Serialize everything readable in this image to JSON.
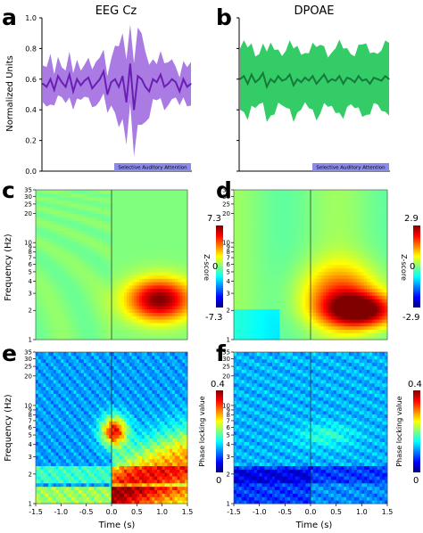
{
  "chart_data": [
    {
      "panel": "a",
      "type": "line",
      "title": "EEG Cz",
      "ylabel": "Normalized Units",
      "ylim": [
        0,
        1.0
      ],
      "yticks": [
        "0.0",
        "0.2",
        "0.4",
        "0.6",
        "0.8",
        "1.0"
      ],
      "time_range_s": [
        -1.5,
        1.5
      ],
      "banner": "Selective Auditory Attention",
      "colors": {
        "line": "#6a1fb3",
        "band": "#a97be3"
      },
      "series": [
        {
          "values": [
            0.57,
            0.55,
            0.6,
            0.53,
            0.62,
            0.58,
            0.55,
            0.63,
            0.52,
            0.6,
            0.56,
            0.59,
            0.61,
            0.54,
            0.57,
            0.6,
            0.65,
            0.5,
            0.58,
            0.6,
            0.55,
            0.62,
            0.45,
            0.7,
            0.4,
            0.62,
            0.6,
            0.55,
            0.52,
            0.6,
            0.58,
            0.63,
            0.55,
            0.57,
            0.6,
            0.58,
            0.52,
            0.6,
            0.55,
            0.57
          ]
        }
      ],
      "band_halfwidth": [
        0.12,
        0.11,
        0.14,
        0.1,
        0.15,
        0.12,
        0.11,
        0.13,
        0.1,
        0.12,
        0.11,
        0.13,
        0.14,
        0.11,
        0.12,
        0.13,
        0.16,
        0.15,
        0.17,
        0.2,
        0.22,
        0.25,
        0.3,
        0.32,
        0.35,
        0.3,
        0.25,
        0.2,
        0.18,
        0.16,
        0.14,
        0.15,
        0.13,
        0.12,
        0.13,
        0.12,
        0.11,
        0.12,
        0.11,
        0.12
      ]
    },
    {
      "panel": "b",
      "type": "line",
      "title": "DPOAE",
      "ylim": [
        0,
        1.0
      ],
      "time_range_s": [
        -1.5,
        1.5
      ],
      "banner": "Selective Auditory Attention",
      "colors": {
        "line": "#157a3b",
        "band": "#33cc66"
      },
      "series": [
        {
          "values": [
            0.6,
            0.62,
            0.57,
            0.63,
            0.58,
            0.6,
            0.64,
            0.55,
            0.6,
            0.58,
            0.62,
            0.59,
            0.6,
            0.63,
            0.56,
            0.6,
            0.58,
            0.61,
            0.59,
            0.62,
            0.57,
            0.6,
            0.63,
            0.58,
            0.6,
            0.59,
            0.62,
            0.57,
            0.61,
            0.6,
            0.58,
            0.62,
            0.59,
            0.6,
            0.57,
            0.61,
            0.6,
            0.59,
            0.62,
            0.6
          ]
        }
      ],
      "band_halfwidth": 0.2
    },
    {
      "panel": "c",
      "type": "heatmap",
      "ylabel": "Frequency (Hz)",
      "yticks": [
        "1",
        "2",
        "3",
        "4",
        "5",
        "6",
        "7",
        "8",
        "9",
        "10",
        "20",
        "25",
        "30",
        "35"
      ],
      "colorbar": {
        "label": "Z-score",
        "max": "7.3",
        "mid": "0",
        "min": "-7.3"
      },
      "blobs": [
        {
          "t": 0.95,
          "f": 2.6,
          "peak": 1.0,
          "st": 0.45,
          "sf": 0.35
        }
      ]
    },
    {
      "panel": "d",
      "type": "heatmap",
      "yticks": [
        "1",
        "2",
        "3",
        "4",
        "5",
        "6",
        "7",
        "8",
        "9",
        "10",
        "20",
        "25",
        "30",
        "35"
      ],
      "colorbar": {
        "label": "Z-score",
        "max": "2.9",
        "mid": "0",
        "min": "-2.9"
      },
      "blobs": [
        {
          "t": 1.0,
          "f": 2.0,
          "peak": 1.0,
          "st": 0.5,
          "sf": 0.28
        },
        {
          "t": 0.6,
          "f": 3.0,
          "peak": 0.55,
          "st": 0.55,
          "sf": 0.5
        }
      ]
    },
    {
      "panel": "e",
      "type": "heatmap",
      "ylabel": "Frequency (Hz)",
      "xlabel": "Time (s)",
      "xticks": [
        "-1.5",
        "-1.0",
        "-0.5",
        "0.0",
        "0.5",
        "1.0",
        "1.5"
      ],
      "yticks": [
        "1",
        "2",
        "3",
        "4",
        "5",
        "6",
        "7",
        "8",
        "9",
        "10",
        "20",
        "25",
        "30",
        "35"
      ],
      "colorbar": {
        "label": "Phase locking value",
        "max": "0.4",
        "min": "0"
      }
    },
    {
      "panel": "f",
      "type": "heatmap",
      "xlabel": "Time (s)",
      "xticks": [
        "-1.5",
        "-1.0",
        "-0.5",
        "0.0",
        "0.5",
        "1.0",
        "1.5"
      ],
      "yticks": [
        "1",
        "2",
        "3",
        "4",
        "5",
        "6",
        "7",
        "8",
        "9",
        "10",
        "20",
        "25",
        "30",
        "35"
      ],
      "colorbar": {
        "label": "Phase locking value",
        "max": "0.4",
        "min": "0"
      }
    }
  ]
}
